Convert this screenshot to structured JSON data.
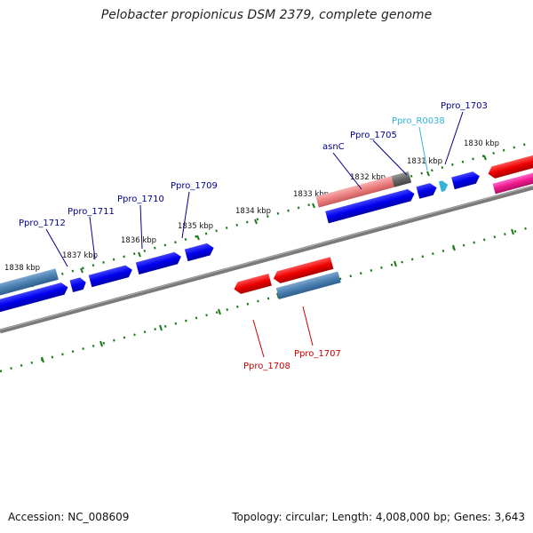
{
  "title": "Pelobacter propionicus DSM 2379, complete genome",
  "accession": "Accession: NC_008609",
  "summary": "Topology: circular; Length: 4,008,000 bp; Genes: 3,643",
  "colors": {
    "backbone": "#808080",
    "tick": "#1a7a1a",
    "forward_cds": "#0000ee",
    "reverse_cds": "#ee0000",
    "feature_label": "#00008b",
    "reverse_label": "#cc0000",
    "rna_label": "#33b5d8"
  },
  "ticks": [
    {
      "label": "1838 kbp"
    },
    {
      "label": "1837 kbp"
    },
    {
      "label": "1836 kbp"
    },
    {
      "label": "1835 kbp"
    },
    {
      "label": "1834 kbp"
    },
    {
      "label": "1833 kbp"
    },
    {
      "label": "1832 kbp"
    },
    {
      "label": "1831 kbp"
    },
    {
      "label": "1830 kbp"
    }
  ],
  "labels": [
    {
      "text": "Ppro_1712",
      "kind": "forward"
    },
    {
      "text": "Ppro_1711",
      "kind": "forward"
    },
    {
      "text": "Ppro_1710",
      "kind": "forward"
    },
    {
      "text": "Ppro_1709",
      "kind": "forward"
    },
    {
      "text": "asnC",
      "kind": "forward"
    },
    {
      "text": "Ppro_1705",
      "kind": "forward"
    },
    {
      "text": "Ppro_R0038",
      "kind": "rna"
    },
    {
      "text": "Ppro_1703",
      "kind": "forward"
    },
    {
      "text": "Ppro_1708",
      "kind": "reverse"
    },
    {
      "text": "Ppro_1707",
      "kind": "reverse"
    }
  ]
}
